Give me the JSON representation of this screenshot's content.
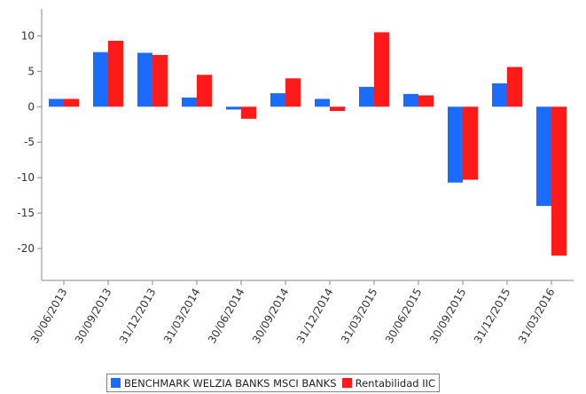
{
  "chart_data": {
    "type": "bar",
    "categories": [
      "30/06/2013",
      "30/09/2013",
      "31/12/2013",
      "31/03/2014",
      "30/06/2014",
      "30/09/2014",
      "31/12/2014",
      "31/03/2015",
      "30/06/2015",
      "30/09/2015",
      "31/12/2015",
      "31/03/2016"
    ],
    "series": [
      {
        "name": "BENCHMARK WELZIA BANKS MSCI BANKS",
        "color": "#1a6cff",
        "values": [
          1.1,
          7.7,
          7.6,
          1.3,
          -0.4,
          1.9,
          1.1,
          2.8,
          1.8,
          -10.7,
          3.3,
          -14.0
        ]
      },
      {
        "name": "Rentabilidad IIC",
        "color": "#ff1a1a",
        "values": [
          1.1,
          9.3,
          7.3,
          4.5,
          -1.7,
          4.0,
          -0.6,
          10.5,
          1.6,
          -10.3,
          5.6,
          -21.0
        ]
      }
    ],
    "yticks": [
      10,
      5,
      0,
      -5,
      -10,
      -15,
      -20
    ],
    "ylim": [
      -24.5,
      13.8
    ],
    "grid": false,
    "legend_position": "bottom"
  }
}
